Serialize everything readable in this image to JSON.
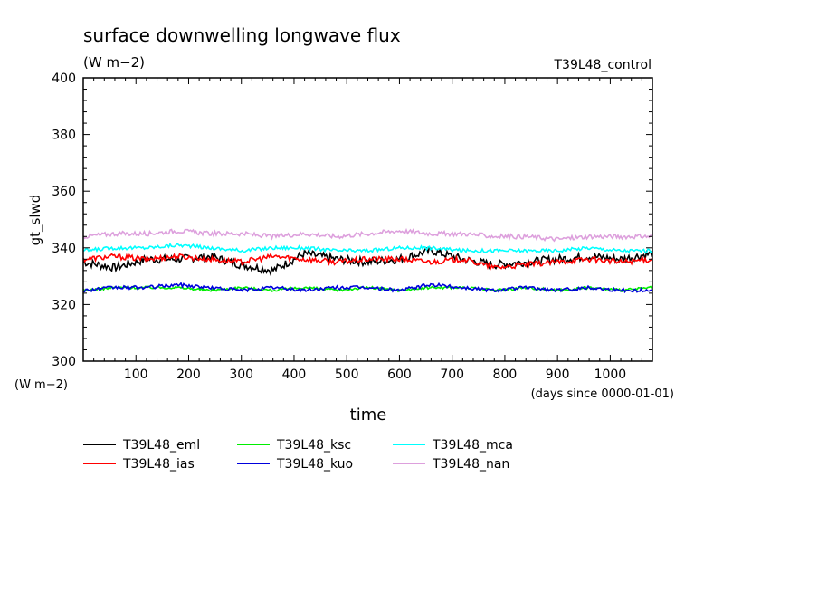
{
  "header": {
    "title": "surface downwelling longwave flux",
    "units": "(W m−2)",
    "experiment": "T39L48_control"
  },
  "chart_data": {
    "type": "line",
    "title": "surface downwelling longwave flux",
    "xlabel": "time",
    "xunits": "(days since 0000-01-01)",
    "ylabel": "gt_slwd",
    "yunits": "(W m−2)",
    "xlim": [
      0,
      1080
    ],
    "ylim": [
      300,
      400
    ],
    "xticks": [
      100,
      200,
      300,
      400,
      500,
      600,
      700,
      800,
      900,
      1000
    ],
    "yticks": [
      300,
      320,
      340,
      360,
      380,
      400
    ],
    "grid": false,
    "legend_position": "bottom",
    "series": [
      {
        "name": "T39L48_eml",
        "color": "#000000",
        "x": [
          0,
          60,
          120,
          180,
          240,
          300,
          360,
          420,
          480,
          540,
          600,
          660,
          720,
          780,
          840,
          900,
          960,
          1020,
          1080
        ],
        "values": [
          335,
          333,
          336,
          336,
          337,
          334,
          332,
          338,
          336,
          335,
          336,
          339,
          336,
          334,
          335,
          336,
          337,
          336,
          338
        ]
      },
      {
        "name": "T39L48_ias",
        "color": "#ff0000",
        "x": [
          0,
          60,
          120,
          180,
          240,
          300,
          360,
          420,
          480,
          540,
          600,
          660,
          720,
          780,
          840,
          900,
          960,
          1020,
          1080
        ],
        "values": [
          336,
          337,
          336,
          337,
          336,
          335,
          337,
          336,
          335,
          336,
          336,
          335,
          336,
          333,
          334,
          335,
          336,
          335,
          336
        ]
      },
      {
        "name": "T39L48_ksc",
        "color": "#00ee00",
        "x": [
          0,
          60,
          120,
          180,
          240,
          300,
          360,
          420,
          480,
          540,
          600,
          660,
          720,
          780,
          840,
          900,
          960,
          1020,
          1080
        ],
        "values": [
          325,
          326,
          326,
          326,
          325,
          326,
          325,
          326,
          325,
          326,
          325,
          326,
          326,
          325,
          326,
          325,
          326,
          325,
          326
        ]
      },
      {
        "name": "T39L48_kuo",
        "color": "#0000dd",
        "x": [
          0,
          60,
          120,
          180,
          240,
          300,
          360,
          420,
          480,
          540,
          600,
          660,
          720,
          780,
          840,
          900,
          960,
          1020,
          1080
        ],
        "values": [
          325,
          326,
          326,
          327,
          326,
          325,
          326,
          325,
          326,
          326,
          325,
          327,
          326,
          325,
          326,
          325,
          326,
          325,
          325
        ]
      },
      {
        "name": "T39L48_mca",
        "color": "#00ffff",
        "x": [
          0,
          60,
          120,
          180,
          240,
          300,
          360,
          420,
          480,
          540,
          600,
          660,
          720,
          780,
          840,
          900,
          960,
          1020,
          1080
        ],
        "values": [
          339,
          340,
          340,
          341,
          340,
          339,
          340,
          340,
          339,
          339,
          340,
          340,
          339,
          339,
          339,
          339,
          340,
          339,
          339
        ]
      },
      {
        "name": "T39L48_nan",
        "color": "#dda0dd",
        "x": [
          0,
          60,
          120,
          180,
          240,
          300,
          360,
          420,
          480,
          540,
          600,
          660,
          720,
          780,
          840,
          900,
          960,
          1020,
          1080
        ],
        "values": [
          344,
          345,
          345,
          346,
          345,
          345,
          344,
          345,
          344,
          345,
          346,
          345,
          345,
          344,
          344,
          343,
          344,
          344,
          344
        ]
      }
    ]
  }
}
